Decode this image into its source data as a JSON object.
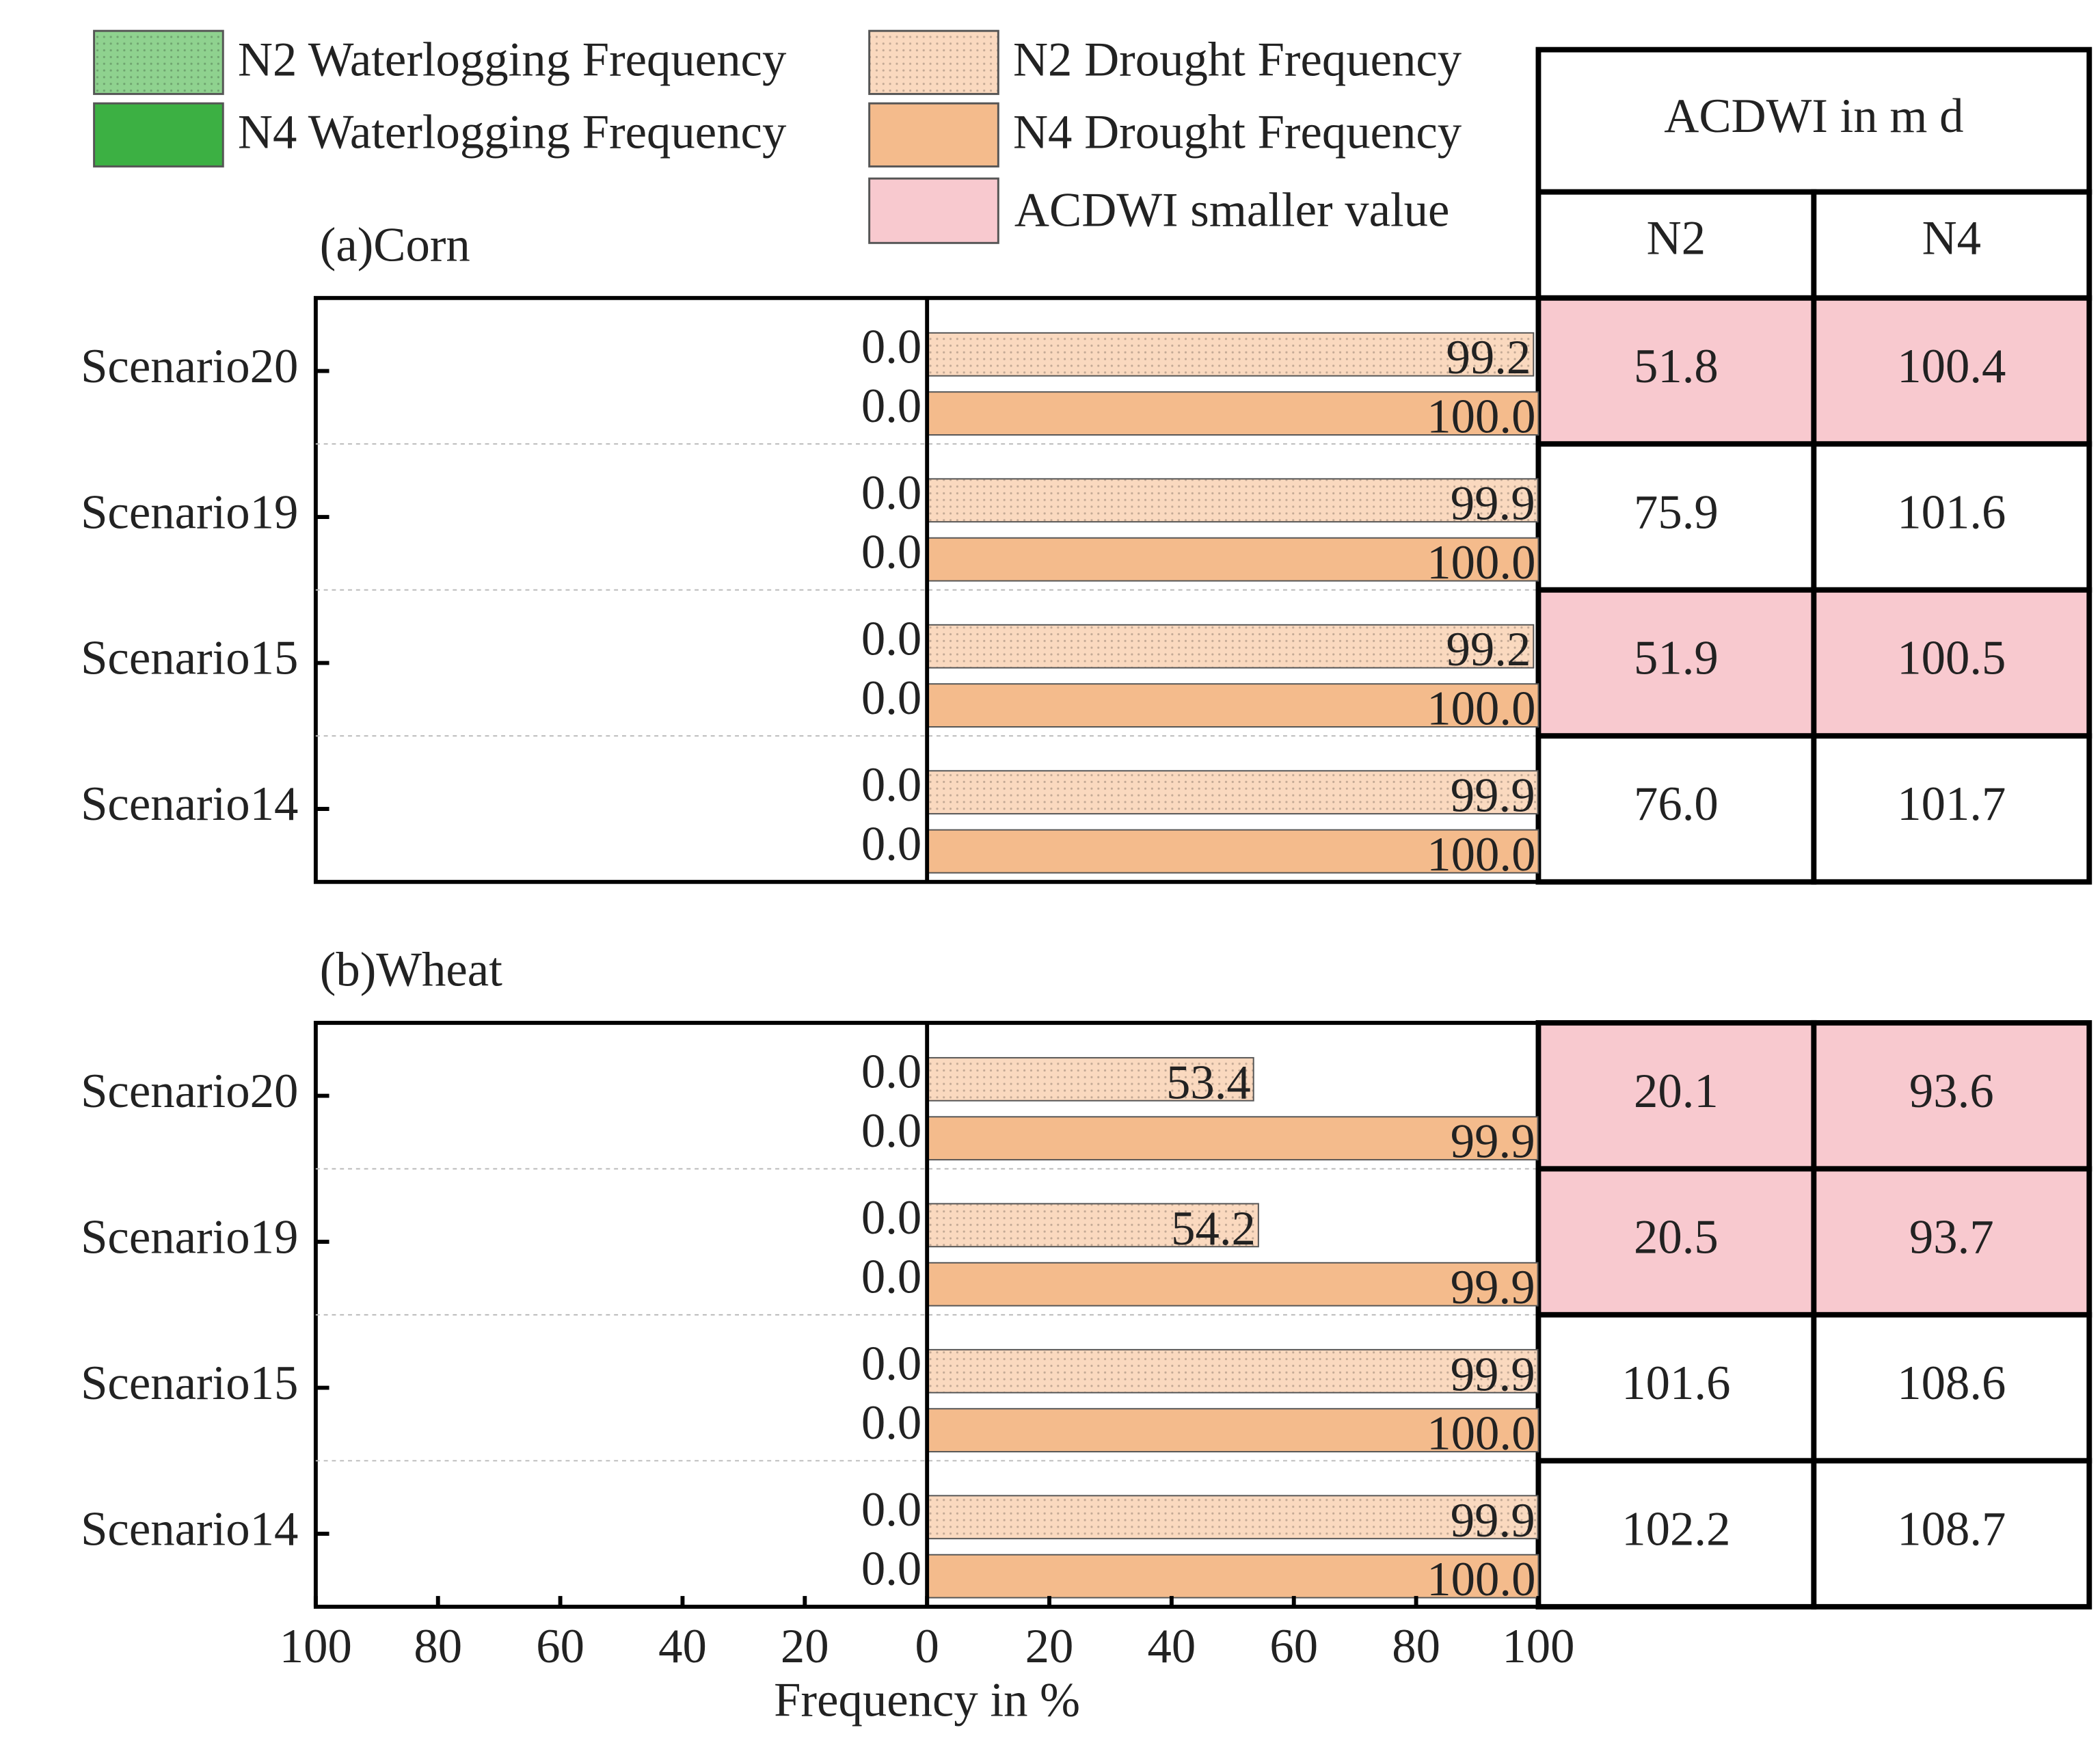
{
  "chart_data": [
    {
      "type": "butterfly-bar",
      "title": "(a)Corn",
      "categories": [
        "Scenario20",
        "Scenario19",
        "Scenario15",
        "Scenario14"
      ],
      "xlim": [
        -100,
        100
      ],
      "series": [
        {
          "name": "N2 Waterlogging Frequency",
          "color": "#8fd28f",
          "pattern": "dotted",
          "side": "left",
          "values": [
            0,
            0,
            0,
            0
          ],
          "value_labels": [
            "0.0",
            "0.0",
            "0.0",
            "0.0"
          ]
        },
        {
          "name": "N4 Waterlogging Frequency",
          "color": "#3cb043",
          "side": "left",
          "values": [
            0,
            0,
            0,
            0
          ],
          "value_labels": [
            "0.0",
            "0.0",
            "0.0",
            "0.0"
          ]
        },
        {
          "name": "N2 Drought Frequency",
          "color": "#fad9bf",
          "pattern": "dotted",
          "side": "right",
          "values": [
            99.2,
            99.9,
            99.2,
            99.9
          ],
          "value_labels": [
            "99.2",
            "99.9",
            "99.2",
            "99.9"
          ]
        },
        {
          "name": "N4 Drought Frequency",
          "color": "#f4bb8c",
          "side": "right",
          "values": [
            100,
            100,
            100,
            100
          ],
          "value_labels": [
            "100.0",
            "100.0",
            "100.0",
            "100.0"
          ]
        }
      ],
      "table": {
        "title": "ACDWI in m d",
        "columns": [
          "N2",
          "N4"
        ],
        "rows": [
          [
            "51.8",
            "100.4"
          ],
          [
            "75.9",
            "101.6"
          ],
          [
            "51.9",
            "100.5"
          ],
          [
            "76.0",
            "101.7"
          ]
        ],
        "highlighted": [
          true,
          false,
          true,
          false
        ]
      }
    },
    {
      "type": "butterfly-bar",
      "title": "(b)Wheat",
      "categories": [
        "Scenario20",
        "Scenario19",
        "Scenario15",
        "Scenario14"
      ],
      "xlim": [
        -100,
        100
      ],
      "xticks": [
        {
          "value": -100,
          "label": "100"
        },
        {
          "value": -80,
          "label": "80"
        },
        {
          "value": -60,
          "label": "60"
        },
        {
          "value": -40,
          "label": "40"
        },
        {
          "value": -20,
          "label": "20"
        },
        0,
        20,
        40,
        60,
        80,
        100
      ],
      "xlabel": "Frequency in %",
      "series": [
        {
          "name": "N2 Waterlogging Frequency",
          "color": "#8fd28f",
          "pattern": "dotted",
          "side": "left",
          "values": [
            0,
            0,
            0,
            0
          ],
          "value_labels": [
            "0.0",
            "0.0",
            "0.0",
            "0.0"
          ]
        },
        {
          "name": "N4 Waterlogging Frequency",
          "color": "#3cb043",
          "side": "left",
          "values": [
            0,
            0,
            0,
            0
          ],
          "value_labels": [
            "0.0",
            "0.0",
            "0.0",
            "0.0"
          ]
        },
        {
          "name": "N2 Drought Frequency",
          "color": "#fad9bf",
          "pattern": "dotted",
          "side": "right",
          "values": [
            53.4,
            54.2,
            99.9,
            99.9
          ],
          "value_labels": [
            "53.4",
            "54.2",
            "99.9",
            "99.9"
          ]
        },
        {
          "name": "N4 Drought Frequency",
          "color": "#f4bb8c",
          "side": "right",
          "values": [
            99.9,
            99.9,
            100,
            100
          ],
          "value_labels": [
            "99.9",
            "99.9",
            "100.0",
            "100.0"
          ]
        }
      ],
      "table": {
        "rows": [
          [
            "20.1",
            "93.6"
          ],
          [
            "20.5",
            "93.7"
          ],
          [
            "101.6",
            "108.6"
          ],
          [
            "102.2",
            "108.7"
          ]
        ],
        "highlighted": [
          true,
          true,
          false,
          false
        ]
      }
    }
  ],
  "highlight": {
    "label": "ACDWI smaller value",
    "color": "#f8c9cf"
  }
}
